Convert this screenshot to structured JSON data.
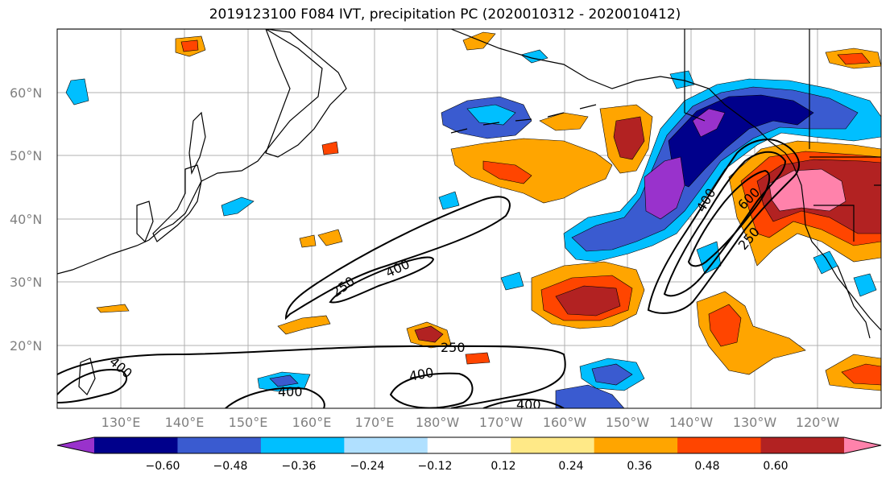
{
  "title": "2019123100 F084 IVT, precipitation PC (2020010312 - 2020010412)",
  "lat_ticks": [
    "60°N",
    "50°N",
    "40°N",
    "30°N",
    "20°N"
  ],
  "lon_ticks": [
    "130°E",
    "140°E",
    "150°E",
    "160°E",
    "170°E",
    "180°W",
    "170°W",
    "160°W",
    "150°W",
    "140°W",
    "130°W",
    "120°W"
  ],
  "contour_labels": [
    "250",
    "400",
    "250",
    "400",
    "400",
    "400",
    "400",
    "400",
    "600",
    "250"
  ],
  "colorbar": {
    "labels": [
      "−0.60",
      "−0.48",
      "−0.36",
      "−0.24",
      "−0.12",
      "0.12",
      "0.24",
      "0.36",
      "0.48",
      "0.60"
    ],
    "colors": [
      "#9932cc",
      "#00008b",
      "#3a5bd0",
      "#00bfff",
      "#b0e0ff",
      "#ffffff",
      "#ffe987",
      "#ffa500",
      "#ff4500",
      "#b22222",
      "#ff82ab"
    ]
  }
}
